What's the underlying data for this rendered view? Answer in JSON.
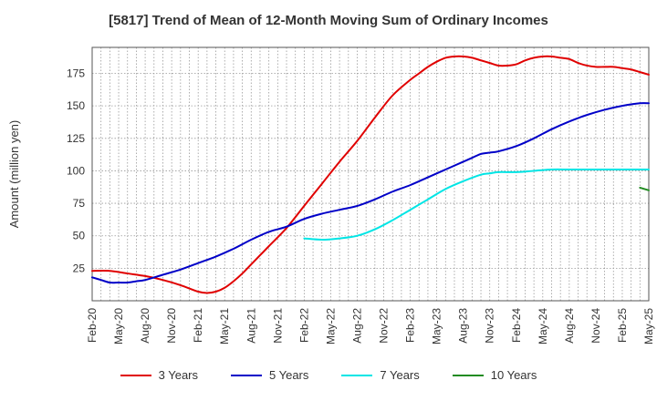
{
  "chart_data": {
    "type": "line",
    "title": "[5817]  Trend of Mean of 12-Month Moving Sum of Ordinary Incomes",
    "xlabel": "",
    "ylabel": "Amount (million yen)",
    "ylim": [
      0,
      195
    ],
    "yticks": [
      25,
      50,
      75,
      100,
      125,
      150,
      175
    ],
    "xticks": [
      "Feb-20",
      "May-20",
      "Aug-20",
      "Nov-20",
      "Feb-21",
      "May-21",
      "Aug-21",
      "Nov-21",
      "Feb-22",
      "May-22",
      "Aug-22",
      "Nov-22",
      "Feb-23",
      "May-23",
      "Aug-23",
      "Nov-23",
      "Feb-24",
      "May-24",
      "Aug-24",
      "Nov-24",
      "Feb-25",
      "May-25"
    ],
    "x_month_range": [
      0,
      63
    ],
    "grid": true,
    "legend_position": "bottom",
    "series": [
      {
        "name": "3 Years",
        "color": "#e00000",
        "x": [
          0,
          2,
          4,
          6,
          8,
          10,
          12,
          13,
          14,
          15,
          16,
          17,
          18,
          19,
          20,
          22,
          24,
          26,
          28,
          30,
          32,
          34,
          36,
          37,
          38,
          39,
          40,
          41,
          42,
          43,
          44,
          45,
          46,
          47,
          48,
          49,
          50,
          51,
          52,
          53,
          54,
          55,
          56,
          57,
          58,
          59,
          60,
          61,
          62,
          63
        ],
        "y": [
          23,
          23,
          21,
          19,
          16,
          12,
          7,
          6,
          7,
          10,
          15,
          21,
          28,
          35,
          42,
          56,
          73,
          90,
          107,
          123,
          141,
          158,
          170,
          175,
          180,
          184,
          187,
          188,
          188,
          187,
          185,
          183,
          181,
          181,
          182,
          185,
          187,
          188,
          188,
          187,
          186,
          183,
          181,
          180,
          180,
          180,
          179,
          178,
          176,
          174
        ]
      },
      {
        "name": "5 Years",
        "color": "#0000c8",
        "x": [
          0,
          1,
          2,
          3,
          4,
          5,
          6,
          8,
          10,
          12,
          14,
          16,
          18,
          20,
          22,
          24,
          26,
          28,
          30,
          32,
          34,
          36,
          38,
          40,
          42,
          43,
          44,
          45,
          46,
          48,
          50,
          52,
          54,
          56,
          58,
          60,
          62,
          63
        ],
        "y": [
          18,
          16,
          14,
          14,
          14,
          15,
          16,
          20,
          24,
          29,
          34,
          40,
          47,
          53,
          57,
          63,
          67,
          70,
          73,
          78,
          84,
          89,
          95,
          101,
          107,
          110,
          113,
          114,
          115,
          119,
          125,
          132,
          138,
          143,
          147,
          150,
          152,
          152
        ]
      },
      {
        "name": "7 Years",
        "color": "#00e5e5",
        "x": [
          24,
          26,
          28,
          30,
          32,
          34,
          36,
          38,
          40,
          42,
          44,
          45,
          46,
          48,
          50,
          52,
          54,
          56,
          58,
          60,
          62,
          63
        ],
        "y": [
          48,
          47,
          48,
          50,
          55,
          62,
          70,
          78,
          86,
          92,
          97,
          98,
          99,
          99,
          100,
          101,
          101,
          101,
          101,
          101,
          101,
          101
        ]
      },
      {
        "name": "10 Years",
        "color": "#228b22",
        "x": [
          62,
          63
        ],
        "y": [
          87,
          85
        ]
      }
    ]
  }
}
